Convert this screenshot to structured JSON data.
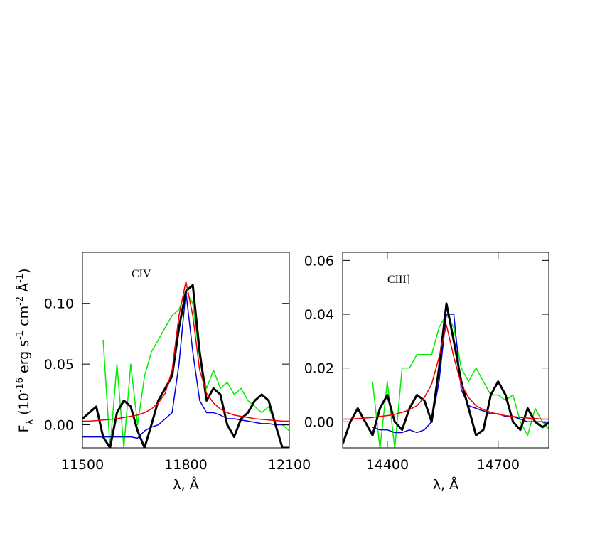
{
  "chart_data": [
    {
      "type": "line",
      "annotation": "CIV",
      "xlabel": "λ, Å",
      "ylabel": [
        "F",
        "λ",
        " (10",
        "-16",
        " erg s",
        "-1",
        " cm",
        "-2",
        " Å",
        "-1",
        ")"
      ],
      "xlim": [
        11500,
        12100
      ],
      "ylim": [
        -0.019,
        0.142
      ],
      "xticks": [
        11500,
        11800,
        12100
      ],
      "yticks": [
        {
          "value": 0,
          "label": "0.00"
        },
        {
          "value": 0.05,
          "label": "0.05"
        },
        {
          "value": 0.1,
          "label": "0.10"
        }
      ],
      "grid": false,
      "x": [
        11500,
        11520,
        11540,
        11560,
        11580,
        11600,
        11620,
        11640,
        11660,
        11680,
        11700,
        11720,
        11740,
        11760,
        11780,
        11800,
        11820,
        11840,
        11860,
        11880,
        11900,
        11920,
        11940,
        11960,
        11980,
        12000,
        12020,
        12040,
        12060,
        12080,
        12100
      ],
      "series": [
        {
          "color": "#00ee00",
          "values": [
            null,
            null,
            null,
            0.07,
            -0.019,
            0.05,
            -0.019,
            0.05,
            0.0,
            0.04,
            0.06,
            0.07,
            0.08,
            0.09,
            0.095,
            0.11,
            0.1,
            0.055,
            0.03,
            0.045,
            0.03,
            0.035,
            0.025,
            0.03,
            0.02,
            0.015,
            0.01,
            0.015,
            0.0,
            0.0,
            -0.005
          ]
        },
        {
          "color": "#0000dd",
          "values": [
            -0.01,
            -0.01,
            -0.01,
            -0.01,
            -0.01,
            -0.01,
            -0.01,
            -0.01,
            -0.011,
            -0.005,
            -0.002,
            0.0,
            0.005,
            0.01,
            0.05,
            0.11,
            0.06,
            0.02,
            0.01,
            0.01,
            0.008,
            0.005,
            0.005,
            0.004,
            0.003,
            0.002,
            0.001,
            0.001,
            0.0,
            0.0,
            0.0
          ]
        },
        {
          "color": "#000000",
          "values": [
            0.005,
            0.01,
            0.015,
            -0.01,
            -0.019,
            0.01,
            0.02,
            0.015,
            -0.005,
            -0.019,
            0.0,
            0.02,
            0.03,
            0.04,
            0.08,
            0.11,
            0.115,
            0.06,
            0.02,
            0.03,
            0.025,
            0.0,
            -0.01,
            0.005,
            0.01,
            0.02,
            0.025,
            0.02,
            0.0,
            -0.019,
            -0.019
          ]
        },
        {
          "color": "#ee0000",
          "values": [
            0.003,
            0.003,
            0.0035,
            0.004,
            0.0045,
            0.005,
            0.006,
            0.007,
            0.008,
            0.01,
            0.013,
            0.018,
            0.026,
            0.045,
            0.09,
            0.118,
            0.09,
            0.045,
            0.026,
            0.018,
            0.013,
            0.01,
            0.008,
            0.007,
            0.006,
            0.005,
            0.0045,
            0.004,
            0.0035,
            0.003,
            0.003
          ]
        }
      ]
    },
    {
      "type": "line",
      "annotation": "CIII]",
      "xlabel": "λ, Å",
      "xlim": [
        14279,
        14837
      ],
      "ylim": [
        -0.0097,
        0.063
      ],
      "xticks": [
        14400,
        14700
      ],
      "yticks": [
        {
          "value": 0,
          "label": "0.00"
        },
        {
          "value": 0.02,
          "label": "0.02"
        },
        {
          "value": 0.04,
          "label": "0.04"
        },
        {
          "value": 0.06,
          "label": "0.06"
        }
      ],
      "grid": false,
      "x": [
        14280,
        14300,
        14320,
        14340,
        14360,
        14380,
        14400,
        14420,
        14440,
        14460,
        14480,
        14500,
        14520,
        14540,
        14560,
        14580,
        14600,
        14620,
        14640,
        14660,
        14680,
        14700,
        14720,
        14740,
        14760,
        14780,
        14800,
        14820,
        14840
      ],
      "series": [
        {
          "color": "#00ee00",
          "values": [
            null,
            null,
            null,
            null,
            0.015,
            -0.01,
            0.015,
            -0.01,
            0.02,
            0.02,
            0.025,
            0.025,
            0.025,
            0.035,
            0.04,
            0.035,
            0.02,
            0.015,
            0.02,
            0.015,
            0.01,
            0.01,
            0.008,
            0.01,
            0.0,
            -0.005,
            0.005,
            0.0,
            -0.003
          ]
        },
        {
          "color": "#0000dd",
          "values": [
            null,
            null,
            null,
            null,
            -0.002,
            -0.003,
            -0.003,
            -0.004,
            -0.004,
            -0.003,
            -0.004,
            -0.003,
            0.0,
            0.015,
            0.04,
            0.04,
            0.012,
            0.006,
            0.005,
            0.004,
            0.003,
            0.003,
            0.002,
            0.002,
            0.001,
            0.0,
            0.0,
            0.0,
            -0.001
          ]
        },
        {
          "color": "#000000",
          "values": [
            -0.008,
            0.0,
            0.005,
            0.0,
            -0.005,
            0.005,
            0.01,
            0.0,
            -0.003,
            0.005,
            0.01,
            0.008,
            0.0,
            0.02,
            0.044,
            0.03,
            0.015,
            0.005,
            -0.005,
            -0.003,
            0.01,
            0.015,
            0.01,
            0.0,
            -0.003,
            0.005,
            0.0,
            -0.002,
            0.0
          ]
        },
        {
          "color": "#ee0000",
          "values": [
            0.001,
            0.001,
            0.0012,
            0.0014,
            0.0016,
            0.002,
            0.0023,
            0.0028,
            0.0035,
            0.0045,
            0.006,
            0.009,
            0.014,
            0.024,
            0.036,
            0.024,
            0.014,
            0.009,
            0.006,
            0.0045,
            0.0035,
            0.0028,
            0.0023,
            0.002,
            0.0016,
            0.0014,
            0.0012,
            0.001,
            0.001
          ]
        }
      ]
    }
  ]
}
